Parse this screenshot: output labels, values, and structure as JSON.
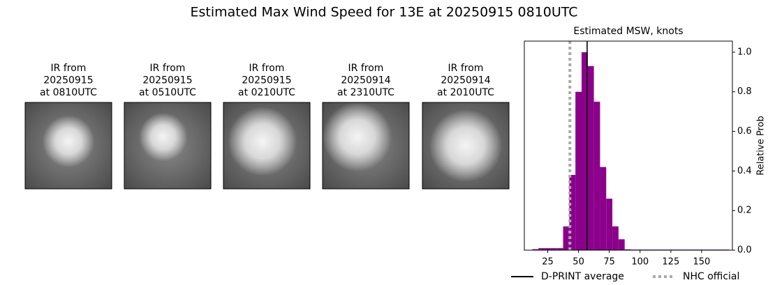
{
  "title": "Estimated Max Wind Speed for 13E at 20250915 0810UTC",
  "images": [
    {
      "label": [
        "IR from",
        "20250915",
        "at 0810UTC"
      ]
    },
    {
      "label": [
        "IR from",
        "20250915",
        "at 0510UTC"
      ]
    },
    {
      "label": [
        "IR from",
        "20250915",
        "at 0210UTC"
      ]
    },
    {
      "label": [
        "IR from",
        "20250914",
        "at 2310UTC"
      ]
    },
    {
      "label": [
        "IR from",
        "20250914",
        "at 2010UTC"
      ]
    }
  ],
  "chart_data": {
    "type": "histogram",
    "title": "Estimated MSW, knots",
    "y_label": "Relative Prob",
    "color": "#8b008b",
    "bins": [
      12.5,
      17.5,
      22.5,
      27.5,
      32.5,
      37.5,
      42.5,
      47.5,
      52.5,
      57.5,
      62.5,
      67.5,
      72.5,
      77.5,
      82.5,
      87.5,
      92.5,
      97.5,
      102.5,
      107.5,
      112.5,
      117.5,
      122.5,
      127.5,
      132.5,
      137.5,
      142.5,
      147.5,
      152.5,
      157.5,
      162.5,
      167.5,
      172.5
    ],
    "values": [
      0.005,
      0.01,
      0.01,
      0.01,
      0.01,
      0.12,
      0.38,
      0.8,
      1.0,
      0.93,
      0.75,
      0.42,
      0.26,
      0.12,
      0.055,
      0.004,
      0.003,
      0.003,
      0.003,
      0.003,
      0.003,
      0.003,
      0.003,
      0.003,
      0.003,
      0.003,
      0.003,
      0.003,
      0.003,
      0.003,
      0.003,
      0.003
    ],
    "lines": [
      {
        "name": "D-PRINT average",
        "value": 57,
        "color": "#000000",
        "style": "solid"
      },
      {
        "name": "NHC official",
        "value": 43,
        "color": "#a9a9a9",
        "style": "dotted"
      }
    ],
    "xlim": [
      6,
      175
    ],
    "xticks": [
      25,
      50,
      75,
      100,
      125,
      150
    ],
    "ylim": [
      0,
      1.056
    ],
    "yticks": [
      {
        "value": 0,
        "label": "0.0"
      },
      0.2,
      0.4,
      0.6,
      0.8,
      {
        "value": 1,
        "label": "1.0"
      }
    ]
  }
}
